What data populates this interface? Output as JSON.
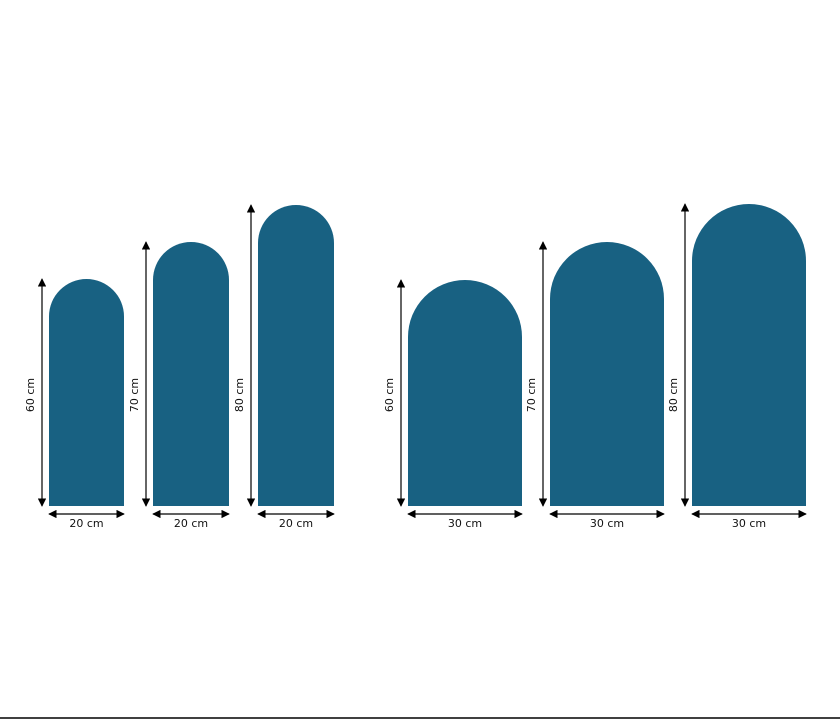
{
  "arches": [
    {
      "height": "60 cm",
      "width": "20 cm"
    },
    {
      "height": "70 cm",
      "width": "20 cm"
    },
    {
      "height": "80 cm",
      "width": "20 cm"
    },
    {
      "height": "60 cm",
      "width": "30 cm"
    },
    {
      "height": "70 cm",
      "width": "30 cm"
    },
    {
      "height": "80 cm",
      "width": "30 cm"
    }
  ]
}
